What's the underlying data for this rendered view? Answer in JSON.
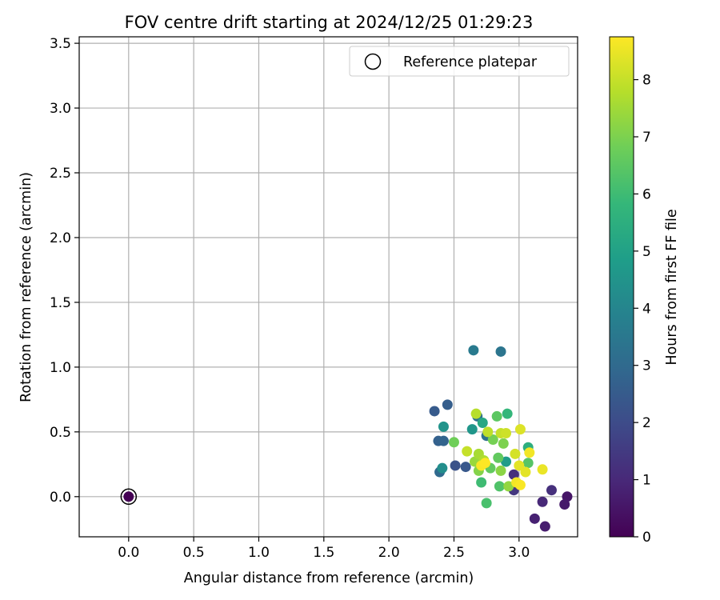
{
  "chart_data": {
    "type": "scatter",
    "title": "FOV centre drift starting at 2024/12/25 01:29:23",
    "xlabel": "Angular distance from reference (arcmin)",
    "ylabel": "Rotation from reference (arcmin)",
    "xlim": [
      -0.38,
      3.45
    ],
    "ylim": [
      -0.31,
      3.55
    ],
    "xticks": [
      0.0,
      0.5,
      1.0,
      1.5,
      2.0,
      2.5,
      3.0
    ],
    "xtick_labels": [
      "0.0",
      "0.5",
      "1.0",
      "1.5",
      "2.0",
      "2.5",
      "3.0"
    ],
    "yticks": [
      0.0,
      0.5,
      1.0,
      1.5,
      2.0,
      2.5,
      3.0,
      3.5
    ],
    "ytick_labels": [
      "0.0",
      "0.5",
      "1.0",
      "1.5",
      "2.0",
      "2.5",
      "3.0",
      "3.5"
    ],
    "grid": true,
    "legend": {
      "placement": "top-right",
      "label": "Reference platepar"
    },
    "reference_point": {
      "x": 0.0,
      "y": 0.0
    },
    "colorbar": {
      "label": "Hours from first FF file",
      "colormap": "viridis",
      "min": 0,
      "max": 8.75,
      "ticks": [
        0,
        1,
        2,
        3,
        4,
        5,
        6,
        7,
        8
      ],
      "tick_labels": [
        "0",
        "1",
        "2",
        "3",
        "4",
        "5",
        "6",
        "7",
        "8"
      ]
    },
    "points": [
      {
        "x": 0.0,
        "y": 0.0,
        "hours": 0.0
      },
      {
        "x": 3.37,
        "y": 0.0,
        "hours": 0.5
      },
      {
        "x": 3.35,
        "y": -0.06,
        "hours": 0.6
      },
      {
        "x": 3.2,
        "y": -0.23,
        "hours": 0.7
      },
      {
        "x": 3.12,
        "y": -0.17,
        "hours": 0.8
      },
      {
        "x": 3.18,
        "y": -0.04,
        "hours": 1.0
      },
      {
        "x": 3.25,
        "y": 0.05,
        "hours": 1.2
      },
      {
        "x": 2.96,
        "y": 0.05,
        "hours": 1.4
      },
      {
        "x": 2.96,
        "y": 0.17,
        "hours": 1.2
      },
      {
        "x": 2.51,
        "y": 0.24,
        "hours": 2.2
      },
      {
        "x": 2.59,
        "y": 0.23,
        "hours": 2.4
      },
      {
        "x": 2.35,
        "y": 0.66,
        "hours": 2.5
      },
      {
        "x": 2.38,
        "y": 0.43,
        "hours": 2.7
      },
      {
        "x": 2.42,
        "y": 0.43,
        "hours": 2.8
      },
      {
        "x": 2.45,
        "y": 0.71,
        "hours": 2.6
      },
      {
        "x": 2.39,
        "y": 0.19,
        "hours": 3.0
      },
      {
        "x": 2.68,
        "y": 0.62,
        "hours": 3.2
      },
      {
        "x": 2.75,
        "y": 0.47,
        "hours": 3.3
      },
      {
        "x": 2.65,
        "y": 1.13,
        "hours": 3.6
      },
      {
        "x": 2.86,
        "y": 1.12,
        "hours": 3.4
      },
      {
        "x": 2.41,
        "y": 0.22,
        "hours": 4.3
      },
      {
        "x": 2.42,
        "y": 0.54,
        "hours": 4.5
      },
      {
        "x": 2.64,
        "y": 0.52,
        "hours": 4.6
      },
      {
        "x": 2.9,
        "y": 0.27,
        "hours": 4.8
      },
      {
        "x": 2.72,
        "y": 0.57,
        "hours": 5.2
      },
      {
        "x": 3.07,
        "y": 0.38,
        "hours": 5.5
      },
      {
        "x": 2.91,
        "y": 0.64,
        "hours": 5.8
      },
      {
        "x": 2.71,
        "y": 0.11,
        "hours": 6.0
      },
      {
        "x": 2.75,
        "y": -0.05,
        "hours": 6.2
      },
      {
        "x": 2.85,
        "y": 0.08,
        "hours": 6.3
      },
      {
        "x": 3.07,
        "y": 0.26,
        "hours": 6.4
      },
      {
        "x": 2.83,
        "y": 0.62,
        "hours": 6.5
      },
      {
        "x": 2.78,
        "y": 0.22,
        "hours": 6.6
      },
      {
        "x": 2.84,
        "y": 0.3,
        "hours": 6.6
      },
      {
        "x": 2.5,
        "y": 0.42,
        "hours": 6.8
      },
      {
        "x": 2.8,
        "y": 0.44,
        "hours": 6.9
      },
      {
        "x": 2.88,
        "y": 0.41,
        "hours": 7.0
      },
      {
        "x": 2.69,
        "y": 0.2,
        "hours": 7.1
      },
      {
        "x": 2.86,
        "y": 0.2,
        "hours": 7.2
      },
      {
        "x": 2.92,
        "y": 0.08,
        "hours": 7.3
      },
      {
        "x": 2.66,
        "y": 0.27,
        "hours": 7.4
      },
      {
        "x": 2.69,
        "y": 0.33,
        "hours": 7.6
      },
      {
        "x": 2.73,
        "y": 0.28,
        "hours": 7.7
      },
      {
        "x": 2.67,
        "y": 0.64,
        "hours": 7.8
      },
      {
        "x": 2.76,
        "y": 0.5,
        "hours": 7.9
      },
      {
        "x": 2.86,
        "y": 0.49,
        "hours": 8.0
      },
      {
        "x": 2.9,
        "y": 0.49,
        "hours": 8.1
      },
      {
        "x": 2.6,
        "y": 0.35,
        "hours": 8.0
      },
      {
        "x": 2.97,
        "y": 0.33,
        "hours": 8.2
      },
      {
        "x": 3.01,
        "y": 0.52,
        "hours": 8.3
      },
      {
        "x": 3.05,
        "y": 0.19,
        "hours": 8.4
      },
      {
        "x": 3.0,
        "y": 0.24,
        "hours": 8.4
      },
      {
        "x": 3.18,
        "y": 0.21,
        "hours": 8.5
      },
      {
        "x": 3.08,
        "y": 0.34,
        "hours": 8.6
      },
      {
        "x": 2.98,
        "y": 0.11,
        "hours": 8.6
      },
      {
        "x": 3.01,
        "y": 0.09,
        "hours": 8.7
      },
      {
        "x": 2.71,
        "y": 0.24,
        "hours": 8.7
      },
      {
        "x": 2.74,
        "y": 0.26,
        "hours": 8.75
      }
    ]
  }
}
